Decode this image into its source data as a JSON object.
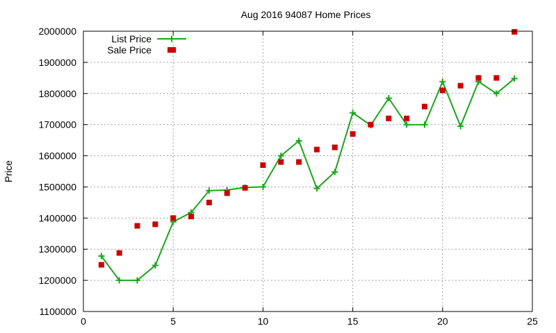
{
  "chart_data": {
    "type": "line",
    "title": "Aug 2016 94087 Home Prices",
    "xlabel": "",
    "ylabel": "Price",
    "xlim": [
      0,
      25
    ],
    "ylim": [
      1100000,
      2000000
    ],
    "x_ticks": [
      0,
      5,
      10,
      15,
      20,
      25
    ],
    "y_ticks": [
      1100000,
      1200000,
      1300000,
      1400000,
      1500000,
      1600000,
      1700000,
      1800000,
      1900000,
      2000000
    ],
    "grid": true,
    "legend_position": "top-left",
    "series": [
      {
        "name": "List Price",
        "style": "line-with-plus-markers",
        "color": "#1aa51a",
        "x": [
          1,
          2,
          3,
          4,
          5,
          6,
          7,
          8,
          9,
          10,
          11,
          12,
          13,
          14,
          15,
          16,
          17,
          18,
          19,
          20,
          21,
          22,
          23,
          24
        ],
        "values": [
          1278000,
          1200000,
          1200000,
          1248000,
          1388000,
          1418000,
          1488000,
          1490000,
          1498000,
          1500000,
          1600000,
          1648000,
          1495000,
          1548000,
          1738000,
          1698000,
          1785000,
          1700000,
          1700000,
          1838000,
          1695000,
          1838000,
          1800000,
          1848000
        ]
      },
      {
        "name": "Sale Price",
        "style": "square-markers",
        "color": "#cc0000",
        "x": [
          1,
          2,
          3,
          4,
          5,
          5,
          6,
          7,
          8,
          9,
          10,
          11,
          12,
          13,
          14,
          15,
          16,
          17,
          18,
          19,
          20,
          21,
          22,
          23,
          24
        ],
        "values": [
          1250000,
          1288000,
          1375000,
          1380000,
          1400000,
          1940000,
          1405000,
          1450000,
          1480000,
          1497000,
          1570000,
          1580000,
          1580000,
          1620000,
          1627000,
          1670000,
          1700000,
          1720000,
          1720000,
          1758000,
          1810000,
          1825000,
          1850000,
          1850000,
          1998000
        ]
      }
    ]
  }
}
